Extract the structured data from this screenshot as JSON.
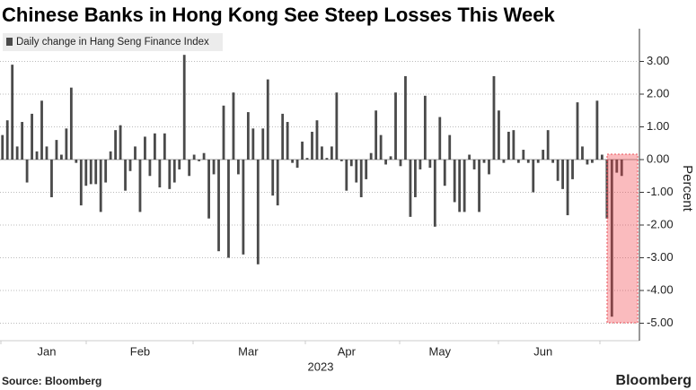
{
  "chart_data": {
    "type": "bar",
    "title": "Chinese Banks in Hong Kong See Steep Losses This Week",
    "legend": "Daily change in Hang Seng Finance Index",
    "ylabel": "Percent",
    "xlabel": "2023",
    "source": "Source: Bloomberg",
    "brand": "Bloomberg",
    "color": "#4a4a4a",
    "grid": true,
    "ylim": [
      -5.5,
      4
    ],
    "yticks": [
      {
        "value": 3,
        "label": "3.00"
      },
      {
        "value": 2,
        "label": "2.00"
      },
      {
        "value": 1,
        "label": "1.00"
      },
      {
        "value": 0,
        "label": "0.00"
      },
      {
        "value": -1,
        "label": "-1.00"
      },
      {
        "value": -2,
        "label": "-2.00"
      },
      {
        "value": -3,
        "label": "-3.00"
      },
      {
        "value": -4,
        "label": "-4.00"
      },
      {
        "value": -5,
        "label": "-5.00"
      }
    ],
    "categories": [
      null,
      null,
      null,
      null,
      null,
      null,
      null,
      null,
      null,
      "Jan",
      null,
      null,
      null,
      null,
      null,
      null,
      null,
      null,
      null,
      null,
      null,
      null,
      null,
      null,
      null,
      null,
      null,
      null,
      "Feb",
      null,
      null,
      null,
      null,
      null,
      null,
      null,
      null,
      null,
      null,
      null,
      null,
      null,
      null,
      null,
      null,
      null,
      null,
      null,
      null,
      null,
      "Mar",
      null,
      null,
      null,
      null,
      null,
      null,
      null,
      null,
      null,
      null,
      null,
      null,
      null,
      null,
      null,
      null,
      null,
      null,
      null,
      "Apr",
      null,
      null,
      null,
      null,
      null,
      null,
      null,
      null,
      null,
      null,
      null,
      null,
      null,
      null,
      null,
      null,
      null,
      null,
      "May",
      null,
      null,
      null,
      null,
      null,
      null,
      null,
      null,
      null,
      null,
      null,
      null,
      null,
      null,
      null,
      null,
      null,
      null,
      null,
      null,
      "Jun",
      null,
      null,
      null,
      null,
      null,
      null,
      null,
      null,
      null,
      null,
      null,
      null,
      null,
      null,
      null,
      null
    ],
    "values": [
      0.75,
      1.2,
      2.9,
      0.4,
      1.15,
      -0.7,
      1.4,
      0.25,
      1.8,
      0.4,
      -1.15,
      0.6,
      0.15,
      0.95,
      2.2,
      -0.1,
      -1.4,
      -0.8,
      -0.75,
      -0.75,
      -1.6,
      -0.7,
      0.25,
      0.9,
      1.05,
      -0.95,
      -0.35,
      0.4,
      -1.6,
      0.7,
      -0.5,
      0.8,
      -0.85,
      0.8,
      -0.9,
      -0.7,
      -0.3,
      3.2,
      -0.5,
      0.15,
      -0.05,
      0.2,
      -1.8,
      -0.45,
      -2.8,
      1.65,
      -3.0,
      2.05,
      -0.45,
      -2.9,
      1.45,
      0.95,
      -3.2,
      0.95,
      2.45,
      -1.1,
      -1.4,
      1.4,
      1.15,
      -0.1,
      -0.25,
      0.55,
      0.05,
      0.85,
      1.2,
      0.4,
      0.05,
      0.4,
      2.05,
      -0.05,
      -0.95,
      -0.2,
      -0.7,
      -1.15,
      -0.6,
      0.2,
      1.5,
      0.75,
      -0.15,
      0.1,
      2.05,
      -0.2,
      2.55,
      -1.75,
      -1.15,
      -0.3,
      1.95,
      -0.25,
      -2.05,
      1.3,
      -0.8,
      0.75,
      -1.3,
      -1.6,
      -1.6,
      0.15,
      -0.3,
      -1.6,
      -0.1,
      -0.45,
      2.55,
      1.5,
      -0.1,
      0.85,
      0.9,
      -0.1,
      0.3,
      -0.1,
      -1.0,
      -0.1,
      0.3,
      0.9,
      -0.1,
      -0.65,
      -0.9,
      -1.7,
      -0.6,
      1.75,
      0.4,
      -0.15,
      -0.1,
      1.8,
      0.15,
      -1.8,
      -4.8,
      -0.4,
      -0.5
    ]
  }
}
